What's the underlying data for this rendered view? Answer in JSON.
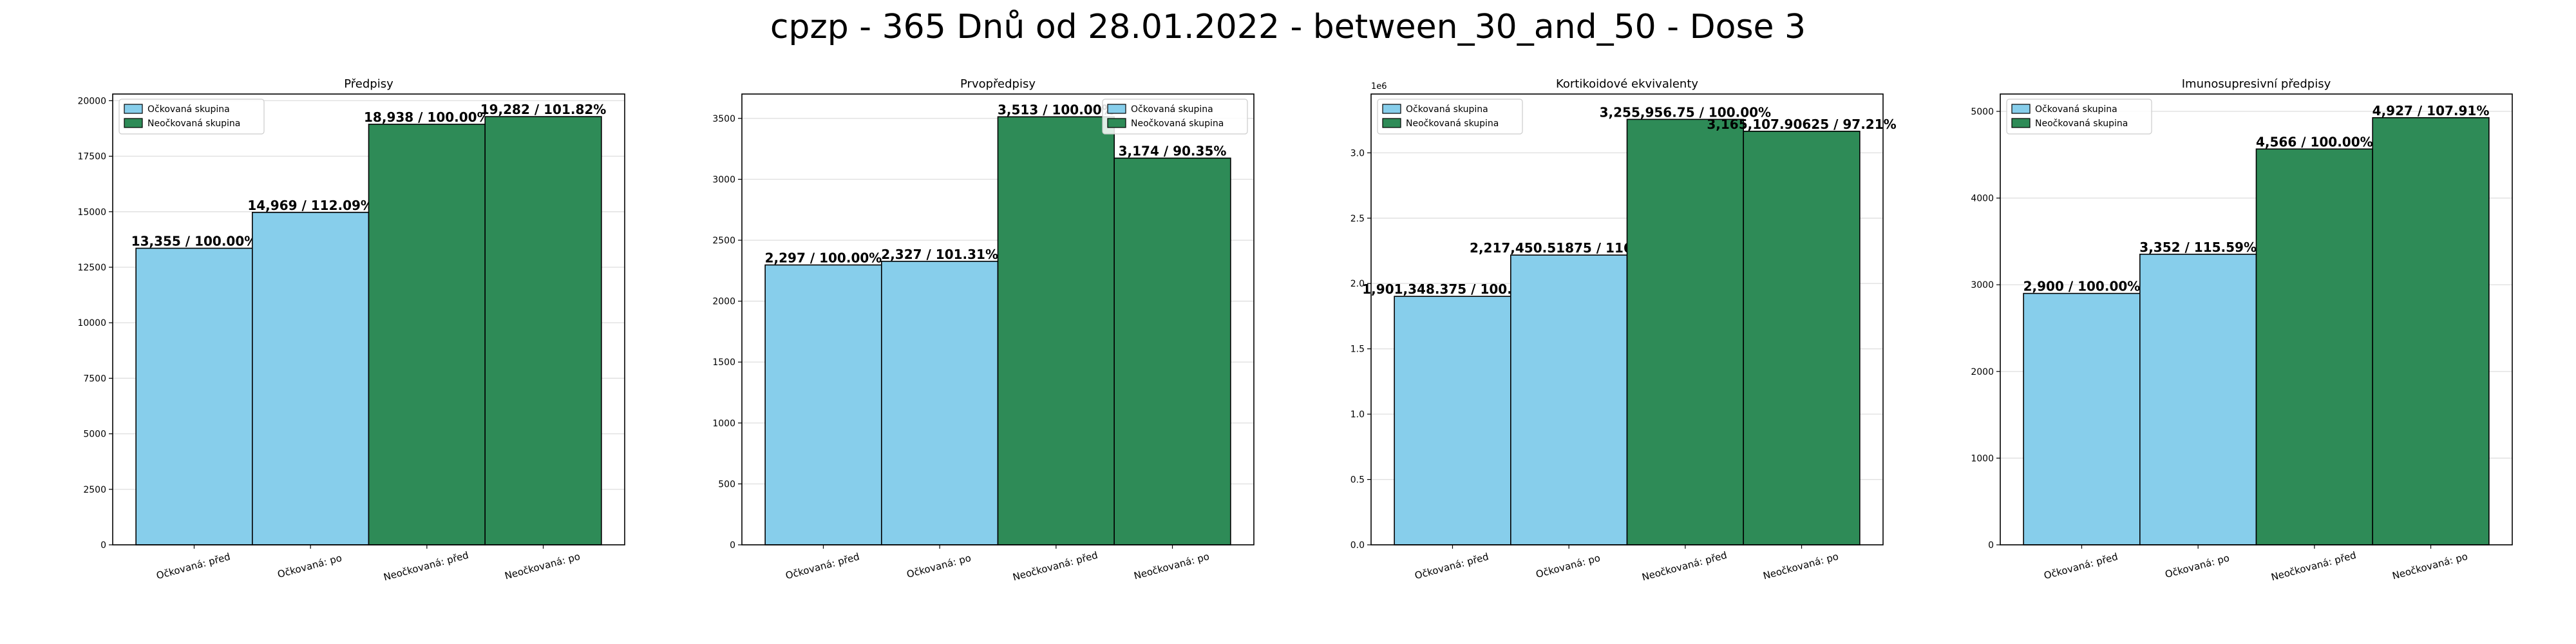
{
  "figure": {
    "title": "cpzp - 365 Dnů od 28.01.2022 - between_30_and_50 - Dose 3"
  },
  "colors": {
    "vaccinated": "#87ceeb",
    "unvaccinated": "#2e8b57",
    "edge": "#000000",
    "grid": "#e0e0e0"
  },
  "legend": {
    "vaccinated": "Očkovaná skupina",
    "unvaccinated": "Neočkovaná skupina"
  },
  "chart_data": [
    {
      "type": "bar",
      "title": "Předpisy",
      "categories": [
        "Očkovaná: před",
        "Očkovaná: po",
        "Neočkovaná: před",
        "Neočkovaná: po"
      ],
      "values": [
        13355,
        14969,
        18938,
        19282
      ],
      "labels": [
        "13,355 / 100.00%",
        "14,969 / 112.09%",
        "18,938 / 100.00%",
        "19,282 / 101.82%"
      ],
      "groups": [
        "vaccinated",
        "vaccinated",
        "unvaccinated",
        "unvaccinated"
      ],
      "ylim": [
        0,
        20300
      ],
      "yticks": [
        0,
        2500,
        5000,
        7500,
        10000,
        12500,
        15000,
        17500,
        20000
      ],
      "ytick_labels": [
        "0",
        "2500",
        "5000",
        "7500",
        "10000",
        "12500",
        "15000",
        "17500",
        "20000"
      ],
      "offset_label": "",
      "legend_position": "upper-left",
      "grid": true
    },
    {
      "type": "bar",
      "title": "Prvopředpisy",
      "categories": [
        "Očkovaná: před",
        "Očkovaná: po",
        "Neočkovaná: před",
        "Neočkovaná: po"
      ],
      "values": [
        2297,
        2327,
        3513,
        3174
      ],
      "labels": [
        "2,297 / 100.00%",
        "2,327 / 101.31%",
        "3,513 / 100.00%",
        "3,174 / 90.35%"
      ],
      "groups": [
        "vaccinated",
        "vaccinated",
        "unvaccinated",
        "unvaccinated"
      ],
      "ylim": [
        0,
        3700
      ],
      "yticks": [
        0,
        500,
        1000,
        1500,
        2000,
        2500,
        3000,
        3500
      ],
      "ytick_labels": [
        "0",
        "500",
        "1000",
        "1500",
        "2000",
        "2500",
        "3000",
        "3500"
      ],
      "offset_label": "",
      "legend_position": "upper-right",
      "grid": true
    },
    {
      "type": "bar",
      "title": "Kortikoidové ekvivalenty",
      "categories": [
        "Očkovaná: před",
        "Očkovaná: po",
        "Neočkovaná: před",
        "Neočkovaná: po"
      ],
      "values": [
        1901348.375,
        2217450.51875,
        3255956.75,
        3165107.90625
      ],
      "labels": [
        "1,901,348.375 / 100.00%",
        "2,217,450.51875 / 116.63%",
        "3,255,956.75 / 100.00%",
        "3,165,107.90625 / 97.21%"
      ],
      "groups": [
        "vaccinated",
        "vaccinated",
        "unvaccinated",
        "unvaccinated"
      ],
      "ylim": [
        0,
        3450000
      ],
      "yticks": [
        0,
        500000,
        1000000,
        1500000,
        2000000,
        2500000,
        3000000
      ],
      "ytick_labels": [
        "0.0",
        "0.5",
        "1.0",
        "1.5",
        "2.0",
        "2.5",
        "3.0"
      ],
      "offset_label": "1e6",
      "legend_position": "upper-left",
      "grid": true
    },
    {
      "type": "bar",
      "title": "Imunosupresivní předpisy",
      "categories": [
        "Očkovaná: před",
        "Očkovaná: po",
        "Neočkovaná: před",
        "Neočkovaná: po"
      ],
      "values": [
        2900,
        3352,
        4566,
        4927
      ],
      "labels": [
        "2,900 / 100.00%",
        "3,352 / 115.59%",
        "4,566 / 100.00%",
        "4,927 / 107.91%"
      ],
      "groups": [
        "vaccinated",
        "vaccinated",
        "unvaccinated",
        "unvaccinated"
      ],
      "ylim": [
        0,
        5200
      ],
      "yticks": [
        0,
        1000,
        2000,
        3000,
        4000,
        5000
      ],
      "ytick_labels": [
        "0",
        "1000",
        "2000",
        "3000",
        "4000",
        "5000"
      ],
      "offset_label": "",
      "legend_position": "upper-left",
      "grid": true
    }
  ]
}
